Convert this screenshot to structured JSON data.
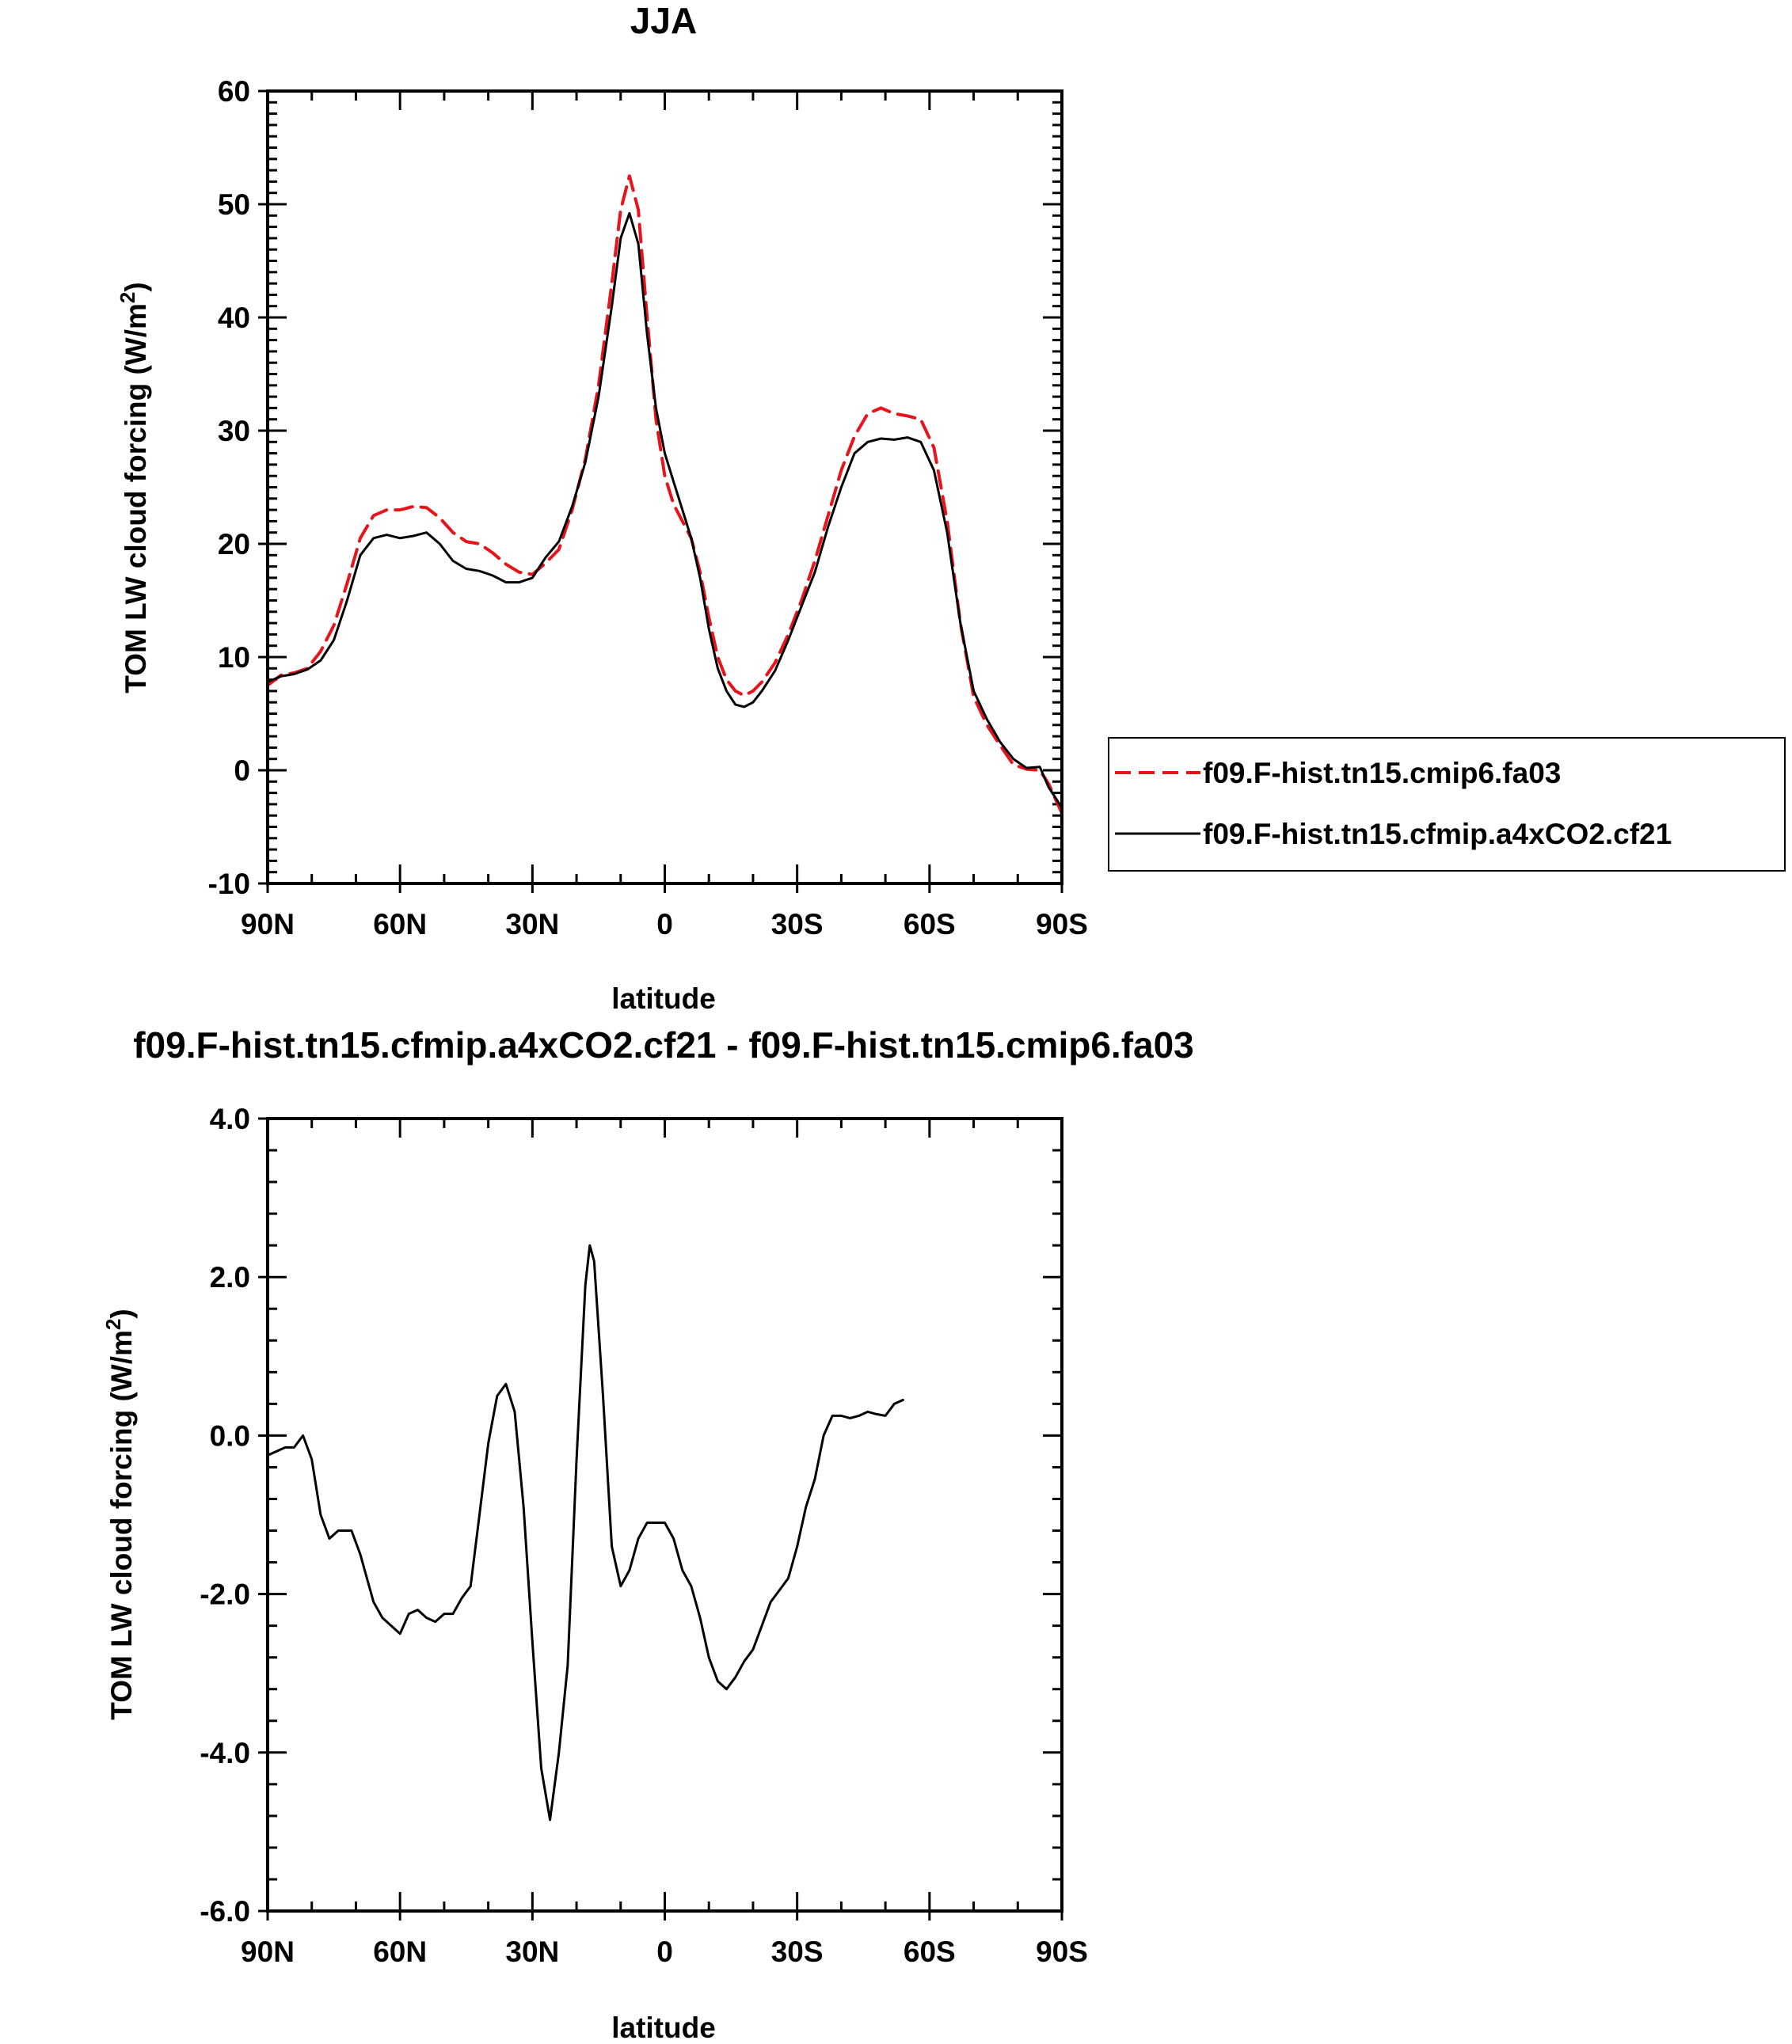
{
  "chart_data": [
    {
      "type": "line",
      "title": "JJA",
      "xlabel": "latitude",
      "ylabel": "TOM LW cloud forcing (W/m",
      "ylabel_sup": "2",
      "ylabel_end": ")",
      "xlim": [
        90,
        -90
      ],
      "ylim": [
        -10,
        60
      ],
      "xticks": [
        90,
        60,
        30,
        0,
        -30,
        -60,
        -90
      ],
      "xtick_labels": [
        "90N",
        "60N",
        "30N",
        "0",
        "30S",
        "60S",
        "90S"
      ],
      "yticks": [
        -10,
        0,
        10,
        20,
        30,
        40,
        50,
        60
      ],
      "ytick_labels": [
        "-10",
        "0",
        "10",
        "20",
        "30",
        "40",
        "50",
        "60"
      ],
      "legend_position": "right",
      "series": [
        {
          "name": "f09.F-hist.tn15.cmip6.fa03",
          "color": "#e8141c",
          "dash": "dashed",
          "points": [
            [
              90,
              7.5
            ],
            [
              87,
              8.4
            ],
            [
              84,
              8.6
            ],
            [
              81,
              9.0
            ],
            [
              78,
              10.5
            ],
            [
              75,
              12.8
            ],
            [
              72,
              16.5
            ],
            [
              69,
              20.5
            ],
            [
              66,
              22.5
            ],
            [
              63,
              23.0
            ],
            [
              60,
              23.0
            ],
            [
              57,
              23.3
            ],
            [
              54,
              23.2
            ],
            [
              51,
              22.3
            ],
            [
              48,
              21.0
            ],
            [
              45,
              20.2
            ],
            [
              42,
              20.0
            ],
            [
              39,
              19.2
            ],
            [
              36,
              18.2
            ],
            [
              33,
              17.5
            ],
            [
              30,
              17.3
            ],
            [
              27,
              18.3
            ],
            [
              24,
              19.5
            ],
            [
              21,
              23.0
            ],
            [
              18,
              27.5
            ],
            [
              15,
              34.0
            ],
            [
              12,
              43.0
            ],
            [
              10,
              49.5
            ],
            [
              8,
              52.5
            ],
            [
              6,
              49.5
            ],
            [
              4,
              40.0
            ],
            [
              2,
              31.0
            ],
            [
              0,
              26.0
            ],
            [
              -2,
              23.5
            ],
            [
              -4,
              22.0
            ],
            [
              -6,
              20.5
            ],
            [
              -8,
              17.5
            ],
            [
              -10,
              13.5
            ],
            [
              -12,
              10.0
            ],
            [
              -14,
              8.0
            ],
            [
              -16,
              7.0
            ],
            [
              -18,
              6.6
            ],
            [
              -20,
              7.0
            ],
            [
              -22,
              7.8
            ],
            [
              -25,
              9.5
            ],
            [
              -28,
              12.0
            ],
            [
              -31,
              15.0
            ],
            [
              -34,
              18.5
            ],
            [
              -37,
              22.5
            ],
            [
              -40,
              26.5
            ],
            [
              -43,
              29.5
            ],
            [
              -46,
              31.5
            ],
            [
              -49,
              32.0
            ],
            [
              -52,
              31.5
            ],
            [
              -55,
              31.3
            ],
            [
              -58,
              31.0
            ],
            [
              -61,
              28.5
            ],
            [
              -64,
              22.0
            ],
            [
              -67,
              13.0
            ],
            [
              -70,
              6.5
            ],
            [
              -73,
              4.0
            ],
            [
              -76,
              2.2
            ],
            [
              -79,
              0.5
            ],
            [
              -82,
              0.1
            ],
            [
              -85,
              0.0
            ],
            [
              -87,
              -1.2
            ],
            [
              -90,
              -3.8
            ]
          ]
        },
        {
          "name": "f09.F-hist.tn15.cfmip.a4xCO2.cf21",
          "color": "#000000",
          "dash": "solid",
          "points": [
            [
              90,
              7.8
            ],
            [
              87,
              8.3
            ],
            [
              84,
              8.5
            ],
            [
              81,
              8.9
            ],
            [
              78,
              9.7
            ],
            [
              75,
              11.5
            ],
            [
              72,
              15.0
            ],
            [
              69,
              19.0
            ],
            [
              66,
              20.5
            ],
            [
              63,
              20.8
            ],
            [
              60,
              20.5
            ],
            [
              57,
              20.7
            ],
            [
              54,
              21.0
            ],
            [
              51,
              20.0
            ],
            [
              48,
              18.5
            ],
            [
              45,
              17.8
            ],
            [
              42,
              17.6
            ],
            [
              39,
              17.2
            ],
            [
              36,
              16.6
            ],
            [
              33,
              16.6
            ],
            [
              30,
              17.0
            ],
            [
              27,
              18.8
            ],
            [
              24,
              20.2
            ],
            [
              21,
              23.3
            ],
            [
              18,
              27.2
            ],
            [
              15,
              33.0
            ],
            [
              12,
              41.0
            ],
            [
              10,
              47.0
            ],
            [
              8,
              49.2
            ],
            [
              6,
              46.5
            ],
            [
              4,
              38.5
            ],
            [
              2,
              32.0
            ],
            [
              0,
              28.0
            ],
            [
              -2,
              25.5
            ],
            [
              -4,
              23.0
            ],
            [
              -6,
              20.5
            ],
            [
              -8,
              17.0
            ],
            [
              -10,
              12.5
            ],
            [
              -12,
              9.0
            ],
            [
              -14,
              7.0
            ],
            [
              -16,
              5.8
            ],
            [
              -18,
              5.6
            ],
            [
              -20,
              6.0
            ],
            [
              -22,
              7.0
            ],
            [
              -25,
              8.8
            ],
            [
              -28,
              11.5
            ],
            [
              -31,
              14.5
            ],
            [
              -34,
              17.5
            ],
            [
              -37,
              21.5
            ],
            [
              -40,
              25.0
            ],
            [
              -43,
              28.0
            ],
            [
              -46,
              29.0
            ],
            [
              -49,
              29.3
            ],
            [
              -52,
              29.2
            ],
            [
              -55,
              29.4
            ],
            [
              -58,
              29.0
            ],
            [
              -61,
              26.5
            ],
            [
              -64,
              21.0
            ],
            [
              -67,
              13.0
            ],
            [
              -70,
              7.0
            ],
            [
              -73,
              4.5
            ],
            [
              -76,
              2.5
            ],
            [
              -79,
              1.0
            ],
            [
              -82,
              0.2
            ],
            [
              -85,
              0.3
            ],
            [
              -87,
              -1.5
            ],
            [
              -90,
              -3.3
            ]
          ]
        }
      ]
    },
    {
      "type": "line",
      "title": "f09.F-hist.tn15.cfmip.a4xCO2.cf21 - f09.F-hist.tn15.cmip6.fa03",
      "xlabel": "latitude",
      "ylabel": "TOM LW cloud forcing (W/m",
      "ylabel_sup": "2",
      "ylabel_end": ")",
      "xlim": [
        90,
        -90
      ],
      "ylim": [
        -6,
        4
      ],
      "xticks": [
        90,
        60,
        30,
        0,
        -30,
        -60,
        -90
      ],
      "xtick_labels": [
        "90N",
        "60N",
        "30N",
        "0",
        "30S",
        "60S",
        "90S"
      ],
      "yticks": [
        -6,
        -4,
        -2,
        0,
        2,
        4
      ],
      "ytick_labels": [
        "-6.0",
        "-4.0",
        "-2.0",
        "0.0",
        "2.0",
        "4.0"
      ],
      "series": [
        {
          "color": "#000000",
          "dash": "solid",
          "points": [
            [
              90,
              -0.25
            ],
            [
              88,
              -0.2
            ],
            [
              86,
              -0.15
            ],
            [
              84,
              -0.15
            ],
            [
              82,
              0.0
            ],
            [
              80,
              -0.3
            ],
            [
              78,
              -1.0
            ],
            [
              76,
              -1.3
            ],
            [
              74,
              -1.2
            ],
            [
              71,
              -1.2
            ],
            [
              69,
              -1.5
            ],
            [
              66,
              -2.1
            ],
            [
              64,
              -2.3
            ],
            [
              62,
              -2.4
            ],
            [
              60,
              -2.5
            ],
            [
              58,
              -2.25
            ],
            [
              56,
              -2.2
            ],
            [
              54,
              -2.3
            ],
            [
              52,
              -2.35
            ],
            [
              50,
              -2.25
            ],
            [
              48,
              -2.25
            ],
            [
              46,
              -2.05
            ],
            [
              44,
              -1.9
            ],
            [
              42,
              -1.0
            ],
            [
              40,
              -0.1
            ],
            [
              38,
              0.5
            ],
            [
              36,
              0.65
            ],
            [
              34,
              0.3
            ],
            [
              32,
              -0.9
            ],
            [
              30,
              -2.6
            ],
            [
              28,
              -4.2
            ],
            [
              26,
              -4.85
            ],
            [
              24,
              -4.0
            ],
            [
              22,
              -2.9
            ],
            [
              20,
              -0.3
            ],
            [
              18,
              1.9
            ],
            [
              17,
              2.4
            ],
            [
              16,
              2.2
            ],
            [
              14,
              0.5
            ],
            [
              12,
              -1.4
            ],
            [
              10,
              -1.9
            ],
            [
              8,
              -1.7
            ],
            [
              6,
              -1.3
            ],
            [
              4,
              -1.1
            ],
            [
              0,
              -1.1
            ],
            [
              -2,
              -1.3
            ],
            [
              -4,
              -1.7
            ],
            [
              -6,
              -1.9
            ],
            [
              -8,
              -2.3
            ],
            [
              -10,
              -2.8
            ],
            [
              -12,
              -3.1
            ],
            [
              -14,
              -3.2
            ],
            [
              -16,
              -3.05
            ],
            [
              -18,
              -2.85
            ],
            [
              -20,
              -2.7
            ],
            [
              -22,
              -2.4
            ],
            [
              -24,
              -2.1
            ],
            [
              -26,
              -1.95
            ],
            [
              -28,
              -1.8
            ],
            [
              -30,
              -1.4
            ],
            [
              -32,
              -0.9
            ],
            [
              -34,
              -0.55
            ],
            [
              -36,
              0.0
            ],
            [
              -38,
              0.25
            ],
            [
              -40,
              0.25
            ],
            [
              -42,
              0.22
            ],
            [
              -44,
              0.25
            ],
            [
              -46,
              0.3
            ],
            [
              -48,
              0.27
            ],
            [
              -50,
              0.25
            ],
            [
              -52,
              0.4
            ],
            [
              -54,
              0.45
            ]
          ]
        }
      ]
    }
  ],
  "legend": [
    {
      "label": "f09.F-hist.tn15.cmip6.fa03",
      "color": "#e8141c",
      "dash": "dashed"
    },
    {
      "label": "f09.F-hist.tn15.cfmip.a4xCO2.cf21",
      "color": "#000000",
      "dash": "solid"
    }
  ]
}
